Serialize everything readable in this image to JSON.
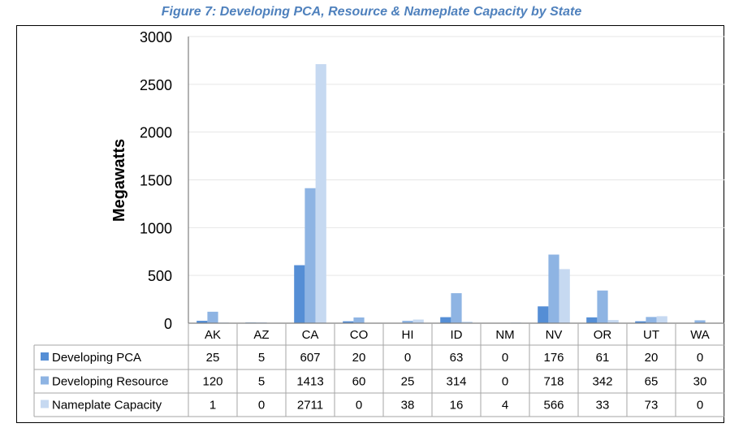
{
  "title": "Figure 7: Developing PCA, Resource & Nameplate Capacity by State",
  "chart_data": {
    "type": "bar",
    "title": "Figure 7: Developing PCA, Resource & Nameplate Capacity by State",
    "xlabel": "",
    "ylabel": "Megawatts",
    "ylim": [
      0,
      3000
    ],
    "yticks": [
      0,
      500,
      1000,
      1500,
      2000,
      2500,
      3000
    ],
    "grid": true,
    "legend": "data-table-below",
    "categories": [
      "AK",
      "AZ",
      "CA",
      "CO",
      "HI",
      "ID",
      "NM",
      "NV",
      "OR",
      "UT",
      "WA"
    ],
    "series": [
      {
        "name": "Developing PCA",
        "color": "#558ed5",
        "values": [
          25,
          5,
          607,
          20,
          0,
          63,
          0,
          176,
          61,
          20,
          0
        ]
      },
      {
        "name": "Developing Resource",
        "color": "#8eb4e3",
        "values": [
          120,
          5,
          1413,
          60,
          25,
          314,
          0,
          718,
          342,
          65,
          30
        ]
      },
      {
        "name": "Nameplate Capacity",
        "color": "#c6d9f1",
        "values": [
          1,
          0,
          2711,
          0,
          38,
          16,
          4,
          566,
          33,
          73,
          0
        ]
      }
    ]
  }
}
